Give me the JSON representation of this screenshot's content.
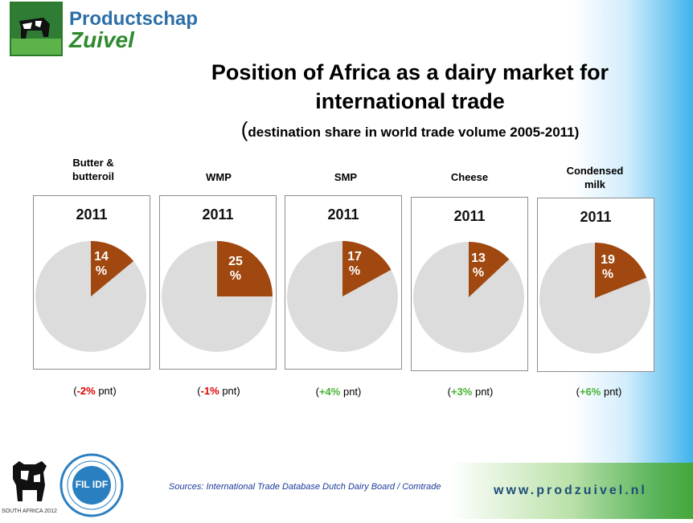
{
  "header": {
    "logo_line1": "Productschap",
    "logo_line2": "Zuivel"
  },
  "title_line1": "Position of Africa as a dairy market for",
  "title_line2": "international trade",
  "subtitle_open": "(",
  "subtitle_text": "destination share in world trade volume 2005-2011)",
  "chart_data": {
    "type": "pie",
    "charts": [
      {
        "category": "Butter & butteroil",
        "year": "2011",
        "africa_share": 14,
        "label_num": "14",
        "label_unit": "%",
        "change_prefix": "(",
        "change_value": "-2%",
        "change_suffix": " pnt)",
        "change_sign": "neg"
      },
      {
        "category": "WMP",
        "year": "2011",
        "africa_share": 25,
        "label_num": "25",
        "label_unit": "%",
        "change_prefix": "(",
        "change_value": "-1%",
        "change_suffix": " pnt)",
        "change_sign": "neg"
      },
      {
        "category": "SMP",
        "year": "2011",
        "africa_share": 17,
        "label_num": "17",
        "label_unit": "%",
        "change_prefix": "(",
        "change_value": "+4%",
        "change_suffix": " pnt)",
        "change_sign": "pos"
      },
      {
        "category": "Cheese",
        "year": "2011",
        "africa_share": 13,
        "label_num": "13",
        "label_unit": "%",
        "change_prefix": "(",
        "change_value": "+3%",
        "change_suffix": " pnt)",
        "change_sign": "pos"
      },
      {
        "category": "Condensed milk",
        "year": "2011",
        "africa_share": 19,
        "label_num": "19",
        "label_unit": "%",
        "change_prefix": "(",
        "change_value": "+6%",
        "change_suffix": " pnt)",
        "change_sign": "pos"
      }
    ],
    "colors": {
      "africa": "#a0480f",
      "rest": "#dcdcdc"
    }
  },
  "categories": {
    "c0_line1": "Butter &",
    "c0_line2": "butteroil",
    "c1": "WMP",
    "c2": "SMP",
    "c3": "Cheese",
    "c4_line1": "Condensed",
    "c4_line2": "milk"
  },
  "footer": {
    "sources": "Sources: International Trade Database Dutch Dairy Board / Comtrade",
    "website": "www.prodzuivel.nl",
    "congress_logo_text": "SOUTH AFRICA 2012",
    "fil_text": "FIL IDF"
  }
}
